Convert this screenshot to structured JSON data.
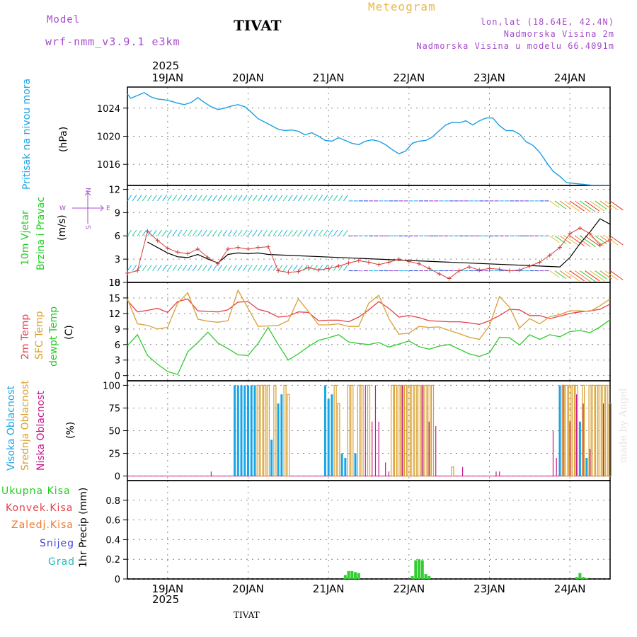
{
  "header": {
    "model_label": "Model",
    "model_name": "wrf-nmm_v3.9.1 e3km",
    "station": "TIVAT",
    "meteogram": "Meteogram",
    "lonlat": "lon,lat (18.64E, 42.4N)",
    "elevation": "Nadmorska Visina 2m",
    "model_elevation": "Nadmorska Visina u modelu 66.4091m",
    "footer_station": "TIVAT",
    "watermark": "made by Angel"
  },
  "colors": {
    "pressure": "#1a9ee6",
    "t2m": "#e6404a",
    "sfc": "#d9a030",
    "dew": "#2ecc2e",
    "high": "#1aa6e6",
    "mid": "#d9a030",
    "low": "#c2188a",
    "precip": "#33cc33",
    "conv": "#e6404a",
    "frz": "#f07830",
    "snow": "#4444dd",
    "hail": "#22bbbb"
  },
  "chart_data": [
    {
      "type": "line",
      "panel": "pressure",
      "ylabel": "Pritisak na nivou mora",
      "unit": "(hPa)",
      "ylim": [
        1013,
        1027
      ],
      "yticks": [
        1016,
        1020,
        1024
      ],
      "x": [
        0,
        1,
        3,
        5,
        7,
        9,
        11,
        13,
        15,
        17,
        19,
        21,
        23,
        25,
        27,
        29,
        31,
        33,
        35,
        37,
        39,
        41,
        43,
        45,
        47,
        49,
        51,
        53,
        55,
        57,
        59,
        61,
        63,
        65,
        67,
        69,
        71,
        73,
        75,
        77,
        79,
        81,
        83,
        85,
        87,
        89,
        91,
        93,
        95,
        97,
        99,
        101,
        103,
        105,
        107,
        109,
        111,
        113,
        115,
        117,
        119,
        121,
        123,
        125,
        127,
        129,
        131,
        133,
        135,
        137,
        139,
        141,
        143,
        144
      ],
      "values": [
        1026,
        1025.4,
        1025.8,
        1026.2,
        1025.6,
        1025.3,
        1025.2,
        1025,
        1024.7,
        1024.5,
        1024.8,
        1025.5,
        1024.8,
        1024.2,
        1023.8,
        1024,
        1024.3,
        1024.5,
        1024.2,
        1023.4,
        1022.5,
        1022,
        1021.5,
        1021,
        1020.8,
        1020.9,
        1020.7,
        1020.2,
        1020.5,
        1020,
        1019.4,
        1019.3,
        1019.8,
        1019.4,
        1019,
        1018.8,
        1019.3,
        1019.5,
        1019.3,
        1018.8,
        1018.1,
        1017.5,
        1017.9,
        1019,
        1019.3,
        1019.4,
        1019.9,
        1020.8,
        1021.6,
        1022,
        1021.9,
        1022.2,
        1021.6,
        1022.2,
        1022.6,
        1022.6,
        1021.5,
        1020.8,
        1020.8,
        1020.3,
        1019.2,
        1018.7,
        1017.7,
        1016.3,
        1015,
        1014.3,
        1013.4,
        1013.3,
        1013.2,
        1013.1,
        1013,
        1013,
        1013,
        1013
      ]
    },
    {
      "type": "line",
      "panel": "wind",
      "ylabel": "10m Vjetar Brzina i Pravac",
      "unit": "(m/s)",
      "compass": "N E S W",
      "ylim": [
        0,
        12.5
      ],
      "yticks": [
        0,
        3,
        6,
        9,
        12
      ],
      "barb_rows": [
        1.5,
        6,
        10.5
      ],
      "x": [
        0,
        3,
        6,
        9,
        12,
        15,
        18,
        21,
        24,
        27,
        30,
        33,
        36,
        39,
        42,
        45,
        48,
        51,
        54,
        57,
        60,
        63,
        66,
        69,
        72,
        75,
        78,
        81,
        84,
        87,
        90,
        93,
        96,
        99,
        102,
        105,
        108,
        111,
        114,
        117,
        120,
        123,
        126,
        129,
        132,
        135,
        138,
        141,
        144
      ],
      "speed": [
        1.2,
        1.5,
        6.6,
        5.4,
        4.4,
        3.9,
        3.7,
        4.3,
        3.2,
        2.4,
        4.3,
        4.5,
        4.3,
        4.5,
        4.6,
        1.5,
        1.3,
        1.4,
        1.9,
        1.6,
        1.8,
        2.1,
        2.5,
        2.8,
        2.6,
        2.3,
        2.6,
        3,
        2.7,
        2.4,
        1.8,
        1.1,
        0.5,
        1.5,
        2,
        1.6,
        1.8,
        1.7,
        1.5,
        1.6,
        2.1,
        2.6,
        3.5,
        4.5,
        6.3,
        7,
        6.3,
        4.8,
        5.5
      ],
      "gust_line": [
        null,
        null,
        5.2,
        4.5,
        3.8,
        3.3,
        3.2,
        3.6,
        3,
        2.5,
        3.6,
        3.8,
        3.7,
        3.8,
        3.6,
        null,
        null,
        null,
        null,
        null,
        null,
        null,
        null,
        null,
        null,
        null,
        null,
        null,
        null,
        null,
        null,
        null,
        null,
        null,
        null,
        null,
        null,
        null,
        null,
        null,
        null,
        null,
        null,
        2,
        3.2,
        5,
        6.5,
        8.2,
        7.5
      ]
    },
    {
      "type": "line",
      "panel": "temperature",
      "ylabel": [
        "2m Temp",
        "SFC Temp",
        "dewpt Temp"
      ],
      "unit": "(C)",
      "ylim": [
        -1,
        18
      ],
      "yticks": [
        0,
        3,
        6,
        9,
        12,
        15,
        18
      ],
      "x": [
        0,
        3,
        6,
        9,
        12,
        15,
        18,
        21,
        24,
        27,
        30,
        33,
        36,
        39,
        42,
        45,
        48,
        51,
        54,
        57,
        60,
        63,
        66,
        69,
        72,
        75,
        78,
        81,
        84,
        87,
        90,
        93,
        96,
        99,
        102,
        105,
        108,
        111,
        114,
        117,
        120,
        123,
        126,
        129,
        132,
        135,
        138,
        141,
        144
      ],
      "series": [
        {
          "name": "2m Temp",
          "values": [
            14.5,
            12.3,
            12.6,
            13,
            12.2,
            14.3,
            14.8,
            12.5,
            12.4,
            12.3,
            12.7,
            14.2,
            14.3,
            12.8,
            12.3,
            11.3,
            11.5,
            12.3,
            12.2,
            10.6,
            10.7,
            10.7,
            10.4,
            11.3,
            12.7,
            14.3,
            13,
            11.3,
            11.6,
            11.2,
            10.6,
            10.5,
            10.4,
            10.4,
            10.2,
            9.9,
            10.6,
            11.6,
            12.8,
            12.7,
            11.6,
            11.6,
            11,
            11.5,
            12,
            12.3,
            12.5,
            12.8,
            13.8
          ]
        },
        {
          "name": "SFC Temp",
          "values": [
            14.8,
            10,
            9.7,
            9,
            9.3,
            14,
            16,
            10.9,
            10.5,
            10.3,
            10.6,
            16.5,
            13,
            9.5,
            9.6,
            9.7,
            10.6,
            14.8,
            12.4,
            9.8,
            9.8,
            10,
            9.5,
            9.5,
            14,
            15.5,
            11,
            8,
            8.2,
            9.5,
            9.3,
            9.4,
            8.7,
            8.1,
            7.4,
            7,
            9.6,
            15.3,
            13.2,
            9.2,
            11,
            10,
            11.4,
            11.8,
            12.5,
            12.5,
            12.4,
            13.5,
            14.8
          ]
        },
        {
          "name": "dewpt Temp",
          "values": [
            5.8,
            7.9,
            3.9,
            2.2,
            0.8,
            0.2,
            4.6,
            6.4,
            8.4,
            6.3,
            5.2,
            4,
            3.9,
            6.2,
            9.3,
            6,
            3,
            4.2,
            5.6,
            6.8,
            7.3,
            7.9,
            6.5,
            6.2,
            6,
            6.4,
            5.5,
            6.1,
            6.7,
            5.6,
            5.1,
            5.7,
            6,
            5.1,
            4.2,
            3.7,
            4.4,
            7.4,
            7.3,
            5.9,
            7.9,
            7,
            7.9,
            7.5,
            8.5,
            8.7,
            8.3,
            9.4,
            10.8
          ]
        }
      ]
    },
    {
      "type": "bar",
      "panel": "cloud",
      "ylabel": [
        "Visoka Oblacnost",
        "Srednja Oblacnost",
        "Niska Oblacnost"
      ],
      "unit": "(%)",
      "ylim": [
        -5,
        105
      ],
      "yticks": [
        0,
        25,
        50,
        75,
        100
      ],
      "series": [
        {
          "name": "Visoka Oblacnost",
          "x": [
            32,
            33,
            34,
            35,
            36,
            37,
            38,
            43,
            45,
            46,
            59,
            60,
            61,
            64,
            65,
            68,
            129,
            135,
            137
          ],
          "values": [
            100,
            100,
            100,
            100,
            100,
            100,
            100,
            40,
            80,
            90,
            100,
            85,
            90,
            25,
            20,
            25,
            100,
            60,
            20
          ]
        },
        {
          "name": "Srednja Oblacnost",
          "x": [
            39,
            40,
            41,
            42,
            44,
            47,
            48,
            62,
            63,
            66,
            67,
            69,
            70,
            72,
            79,
            80,
            81,
            82,
            83,
            84,
            85,
            86,
            87,
            88,
            89,
            90,
            91,
            97,
            130,
            131,
            132,
            133,
            134,
            136,
            138,
            139,
            140,
            141,
            142,
            143,
            144
          ],
          "values": [
            100,
            100,
            100,
            100,
            100,
            100,
            90,
            100,
            80,
            100,
            100,
            100,
            100,
            100,
            100,
            100,
            100,
            100,
            100,
            100,
            100,
            100,
            100,
            100,
            100,
            100,
            100,
            10,
            100,
            100,
            100,
            100,
            100,
            100,
            100,
            100,
            100,
            100,
            100,
            100,
            80
          ]
        },
        {
          "name": "Niska Oblacnost",
          "x": [
            25,
            71,
            73,
            74,
            75,
            77,
            78,
            82,
            88,
            90,
            92,
            100,
            110,
            111,
            127,
            128,
            130,
            132,
            134,
            136,
            138,
            142
          ],
          "values": [
            5,
            100,
            60,
            100,
            60,
            15,
            5,
            100,
            100,
            60,
            55,
            10,
            5,
            5,
            50,
            20,
            100,
            60,
            90,
            80,
            30,
            80
          ]
        }
      ]
    },
    {
      "type": "bar",
      "panel": "precip",
      "ylabel": "1hr Precip (mm)",
      "legend": [
        "Ukupna Kisa",
        "Konvek.Kisa",
        "Zaledj.Kisa",
        "Snijeg",
        "Grad"
      ],
      "ylim": [
        0,
        1.0
      ],
      "yticks": [
        0,
        0.2,
        0.4,
        0.6,
        0.8
      ],
      "x": [
        65,
        66,
        67,
        68,
        69,
        85,
        86,
        87,
        88,
        89,
        90,
        134,
        135,
        136,
        137
      ],
      "values": [
        0.04,
        0.08,
        0.08,
        0.07,
        0.06,
        0.03,
        0.19,
        0.2,
        0.19,
        0.05,
        0.03,
        0.02,
        0.06,
        0.02,
        0.01
      ]
    }
  ],
  "x_axis": {
    "year": "2025",
    "labels": [
      "19JAN",
      "20JAN",
      "21JAN",
      "22JAN",
      "23JAN",
      "24JAN"
    ],
    "day_hours": [
      12,
      36,
      60,
      84,
      108,
      132
    ],
    "range": [
      0,
      144
    ]
  }
}
